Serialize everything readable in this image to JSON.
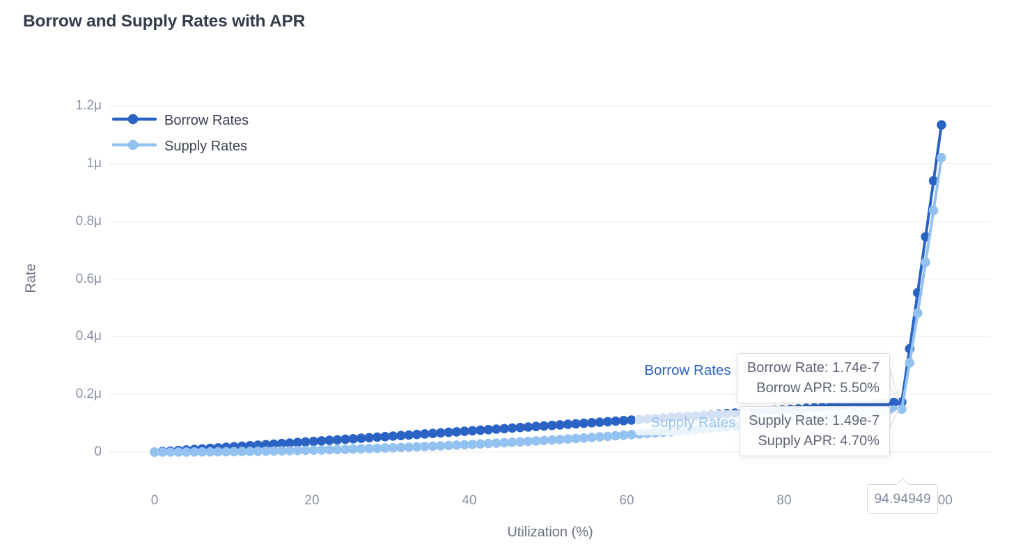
{
  "title": "Borrow and Supply Rates with APR",
  "legend": {
    "items": [
      {
        "label": "Borrow Rates",
        "color": "#2B63C4"
      },
      {
        "label": "Supply Rates",
        "color": "#93C2F0"
      }
    ]
  },
  "axes": {
    "x": {
      "label": "Utilization (%)",
      "ticks": [
        "0",
        "20",
        "40",
        "60",
        "80",
        "100"
      ],
      "tick_values": [
        0,
        20,
        40,
        60,
        80,
        100
      ],
      "range": [
        0,
        100
      ]
    },
    "y": {
      "label": "Rate",
      "ticks": [
        "0",
        "0.2μ",
        "0.4μ",
        "0.6μ",
        "0.8μ",
        "1μ",
        "1.2μ"
      ],
      "tick_values_e9": [
        0,
        200,
        400,
        600,
        800,
        1000,
        1200
      ],
      "range": [
        0,
        1.2e-06
      ]
    }
  },
  "hover": {
    "x_axis_pointer_label": "94.94949",
    "series_labels": {
      "borrow": "Borrow Rates",
      "supply": "Supply Rates"
    },
    "borrow_tooltip": {
      "line1": "Borrow Rate: 1.74e-7",
      "line2": "Borrow APR: 5.50%"
    },
    "supply_tooltip": {
      "line1": "Supply Rate: 1.49e-7",
      "line2": "Supply APR: 4.70%"
    }
  },
  "colors": {
    "borrow": "#2B63C4",
    "supply": "#93C2F0",
    "grid": "#e8ebf2",
    "tick_text": "#8a90a4",
    "axis_name_text": "#6b7080",
    "tooltip_text": "#5f6575",
    "tooltip_border": "#d8dae1",
    "title_text": "#343b4c"
  },
  "chart_data": {
    "type": "line",
    "title": "Borrow and Supply Rates with APR",
    "xlabel": "Utilization (%)",
    "ylabel": "Rate",
    "xlim": [
      0,
      100
    ],
    "ylim": [
      0,
      1.2e-06
    ],
    "grid": "horizontal only",
    "legend_position": "top-left inside plot",
    "marker": "circle",
    "value_unit": 1e-09,
    "x": [
      0,
      1.01,
      2.02,
      3.03,
      4.04,
      5.05,
      6.06,
      7.07,
      8.08,
      9.09,
      10.1,
      11.11,
      12.12,
      13.13,
      14.14,
      15.15,
      16.16,
      17.17,
      18.18,
      19.19,
      20.2,
      21.21,
      22.22,
      23.23,
      24.24,
      25.25,
      26.26,
      27.27,
      28.28,
      29.29,
      30.3,
      31.31,
      32.32,
      33.33,
      34.34,
      35.35,
      36.36,
      37.37,
      38.38,
      39.39,
      40.4,
      41.41,
      42.42,
      43.43,
      44.44,
      45.45,
      46.46,
      47.47,
      48.48,
      49.49,
      50.51,
      51.52,
      52.53,
      53.54,
      54.55,
      55.56,
      56.57,
      57.58,
      58.59,
      59.6,
      60.61,
      61.62,
      62.63,
      63.64,
      64.65,
      65.66,
      66.67,
      67.68,
      68.69,
      69.7,
      70.71,
      71.72,
      72.73,
      73.74,
      74.75,
      75.76,
      76.77,
      77.78,
      78.79,
      79.8,
      80.81,
      81.82,
      82.83,
      83.84,
      84.85,
      85.86,
      86.87,
      87.88,
      88.89,
      89.9,
      90.91,
      91.92,
      92.93,
      93.94,
      94.95,
      95.96,
      96.97,
      97.98,
      98.99,
      100
    ],
    "series": [
      {
        "name": "Borrow Rates",
        "color": "#2B63C4",
        "values_e9": [
          0,
          1.85,
          3.7,
          5.55,
          7.4,
          9.26,
          11.11,
          12.96,
          14.81,
          16.66,
          18.51,
          20.36,
          22.21,
          24.06,
          25.92,
          27.77,
          29.62,
          31.47,
          33.32,
          35.17,
          37.02,
          38.87,
          40.72,
          42.58,
          44.43,
          46.28,
          48.13,
          49.98,
          51.83,
          53.68,
          55.53,
          57.38,
          59.24,
          61.09,
          62.94,
          64.79,
          66.64,
          68.49,
          70.34,
          72.19,
          74.04,
          75.9,
          77.75,
          79.6,
          81.45,
          83.3,
          85.15,
          87.0,
          88.85,
          90.7,
          92.56,
          94.41,
          96.26,
          98.11,
          99.96,
          101.81,
          103.66,
          105.51,
          107.36,
          109.22,
          111.07,
          112.92,
          114.77,
          116.62,
          118.47,
          120.32,
          122.17,
          124.02,
          125.88,
          127.73,
          129.58,
          131.43,
          133.28,
          135.13,
          136.98,
          138.83,
          140.68,
          142.54,
          144.39,
          146.24,
          148.09,
          149.94,
          151.79,
          153.64,
          155.49,
          157.34,
          159.2,
          161.05,
          162.9,
          164.75,
          166.6,
          168.45,
          170.3,
          172.15,
          174.01,
          358.43,
          552.35,
          746.27,
          940.19,
          1134.11
        ]
      },
      {
        "name": "Supply Rates",
        "color": "#93C2F0",
        "values_e9": [
          0,
          0.02,
          0.07,
          0.15,
          0.27,
          0.42,
          0.61,
          0.82,
          1.08,
          1.36,
          1.68,
          2.04,
          2.42,
          2.84,
          3.3,
          3.79,
          4.31,
          4.86,
          5.45,
          6.07,
          6.73,
          7.42,
          8.14,
          8.9,
          9.69,
          10.52,
          11.38,
          12.27,
          13.19,
          14.15,
          15.15,
          16.17,
          17.23,
          18.33,
          19.45,
          20.61,
          21.81,
          23.04,
          24.3,
          25.6,
          26.92,
          28.29,
          29.68,
          31.11,
          32.58,
          34.08,
          35.61,
          37.17,
          38.77,
          40.41,
          42.07,
          43.77,
          45.5,
          47.27,
          49.07,
          50.9,
          52.77,
          54.67,
          56.61,
          58.58,
          60.58,
          62.62,
          64.69,
          66.79,
          68.93,
          71.1,
          73.3,
          75.54,
          77.81,
          80.12,
          82.46,
          84.83,
          87.23,
          89.67,
          92.15,
          94.66,
          97.2,
          99.77,
          102.38,
          105.02,
          107.7,
          110.41,
          113.15,
          115.93,
          118.74,
          121.58,
          124.46,
          127.37,
          130.31,
          133.29,
          136.3,
          139.35,
          142.42,
          145.54,
          148.68,
          309.56,
          482.04,
          658.07,
          837.55,
          1020.7
        ]
      }
    ],
    "highlight": {
      "x": 94.94949,
      "borrow_rate": 1.74e-07,
      "borrow_apr_pct": 5.5,
      "supply_rate": 1.49e-07,
      "supply_apr_pct": 4.7
    }
  }
}
